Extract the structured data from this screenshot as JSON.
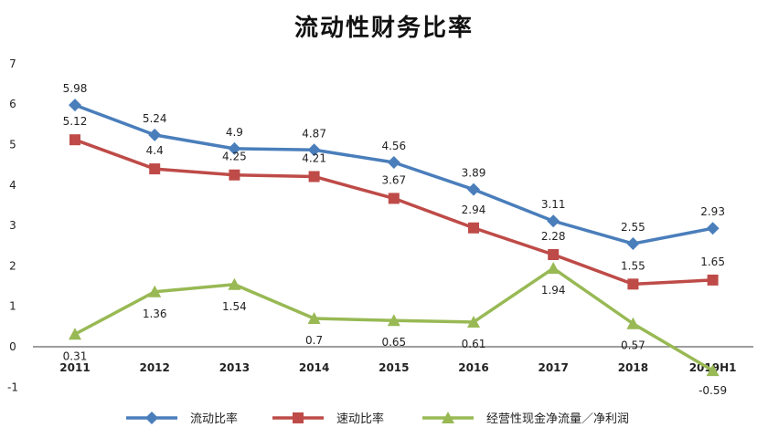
{
  "chart_data": {
    "type": "line",
    "title": "流动性财务比率",
    "categories": [
      "2011",
      "2012",
      "2013",
      "2014",
      "2015",
      "2016",
      "2017",
      "2018",
      "2019H1"
    ],
    "ylim": [
      -1,
      7
    ],
    "yticks": [
      -1,
      0,
      1,
      2,
      3,
      4,
      5,
      6,
      7
    ],
    "grid": false,
    "legend_position": "bottom",
    "series": [
      {
        "name": "流动比率",
        "color": "#4A7EBB",
        "marker": "diamond",
        "values": [
          5.98,
          5.24,
          4.9,
          4.87,
          4.56,
          3.89,
          3.11,
          2.55,
          2.93
        ]
      },
      {
        "name": "速动比率",
        "color": "#BE4B48",
        "marker": "square",
        "values": [
          5.12,
          4.4,
          4.25,
          4.21,
          3.67,
          2.94,
          2.28,
          1.55,
          1.65
        ]
      },
      {
        "name": "经营性现金净流量／净利润",
        "color": "#98B954",
        "marker": "triangle",
        "values": [
          0.31,
          1.36,
          1.54,
          0.7,
          0.65,
          0.61,
          1.94,
          0.57,
          -0.59
        ]
      }
    ]
  }
}
